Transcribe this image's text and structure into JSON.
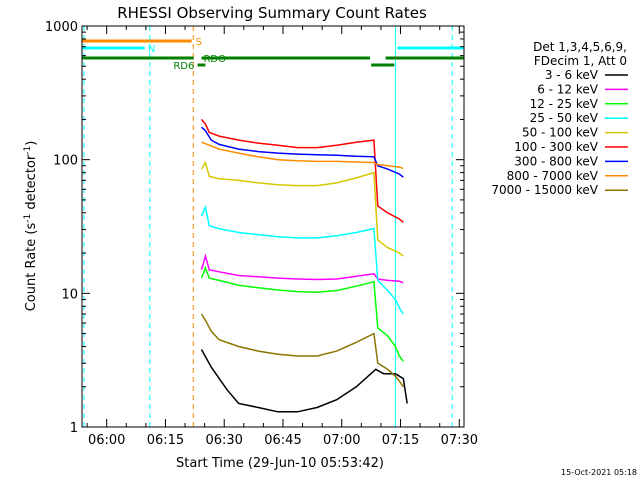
{
  "chart_data": {
    "type": "line",
    "title": "RHESSI Observing Summary Count Rates",
    "xlabel": "Start Time (29-Jun-10 05:53:42)",
    "ylabel_main": "Count Rate (s",
    "ylabel_sup1": "-1",
    "ylabel_mid": " detector",
    "ylabel_sup2": "-1",
    "ylabel_end": ")",
    "x_unit": "minutes since 05:53:42",
    "xlim": [
      0,
      97.5
    ],
    "ylim": [
      1,
      1000
    ],
    "yscale": "log",
    "xticks": [
      {
        "pos": 6.3,
        "label": "06:00"
      },
      {
        "pos": 21.3,
        "label": "06:15"
      },
      {
        "pos": 36.3,
        "label": "06:30"
      },
      {
        "pos": 51.3,
        "label": "06:45"
      },
      {
        "pos": 66.3,
        "label": "07:00"
      },
      {
        "pos": 81.3,
        "label": "07:15"
      },
      {
        "pos": 96.3,
        "label": "07:30"
      }
    ],
    "yticks": [
      {
        "value": 1,
        "label": "1"
      },
      {
        "value": 10,
        "label": "10"
      },
      {
        "value": 100,
        "label": "100"
      },
      {
        "value": 1000,
        "label": "1000"
      }
    ],
    "legend": {
      "placement": "right",
      "header": [
        "Det 1,3,4,5,6,9,",
        "FDecim 1, Att 0"
      ]
    },
    "series": [
      {
        "name": "3 - 6 keV",
        "color": "#000000",
        "x": [
          30.5,
          33,
          37,
          40,
          45,
          50,
          55,
          60,
          65,
          70,
          75,
          77,
          80,
          81,
          82,
          83
        ],
        "y": [
          3.8,
          2.8,
          1.9,
          1.5,
          1.4,
          1.3,
          1.3,
          1.4,
          1.6,
          2.0,
          2.7,
          2.5,
          2.5,
          2.4,
          2.3,
          1.5
        ]
      },
      {
        "name": "6 - 12 keV",
        "color": "#ff00ff",
        "x": [
          30.5,
          31.5,
          32.5,
          35,
          40,
          45,
          50,
          55,
          60,
          65,
          70,
          74.5,
          75.5,
          78,
          81,
          82
        ],
        "y": [
          15,
          19,
          15,
          14.5,
          13.6,
          13.3,
          13.0,
          12.8,
          12.7,
          12.8,
          13.4,
          14.0,
          12.8,
          12.5,
          12.3,
          12.0
        ]
      },
      {
        "name": "12 - 25 keV",
        "color": "#00ff00",
        "x": [
          30.5,
          31.5,
          32.5,
          35,
          40,
          45,
          50,
          55,
          60,
          65,
          70,
          74.5,
          75.5,
          78,
          80,
          81,
          82
        ],
        "y": [
          13,
          15.5,
          13,
          12.5,
          11.5,
          11.0,
          10.6,
          10.3,
          10.2,
          10.5,
          11.3,
          12.2,
          5.5,
          4.8,
          4.0,
          3.4,
          3.1
        ]
      },
      {
        "name": "25 - 50 keV",
        "color": "#00ffff",
        "x": [
          30.5,
          31.5,
          32.5,
          35,
          40,
          45,
          50,
          55,
          60,
          65,
          70,
          74.5,
          75.5,
          78,
          80,
          81,
          82
        ],
        "y": [
          38,
          44,
          32,
          30.5,
          28.5,
          27.5,
          26.5,
          26.0,
          26.0,
          27.0,
          28.5,
          30.5,
          12.5,
          10.5,
          9.0,
          7.8,
          7.0
        ]
      },
      {
        "name": "50 - 100 keV",
        "color": "#d4c800",
        "x": [
          30.5,
          31.5,
          32.5,
          35,
          40,
          45,
          50,
          55,
          60,
          65,
          70,
          74.5,
          75.5,
          78,
          81,
          82
        ],
        "y": [
          85,
          95,
          75,
          72,
          70,
          67,
          65,
          64,
          64,
          67,
          73,
          80,
          25,
          22,
          20,
          19
        ]
      },
      {
        "name": "100 - 300 keV",
        "color": "#ff0000",
        "x": [
          30.5,
          31.5,
          32.5,
          35,
          40,
          45,
          50,
          55,
          60,
          65,
          70,
          74.5,
          75.5,
          78,
          81,
          82
        ],
        "y": [
          200,
          185,
          160,
          150,
          140,
          133,
          128,
          123,
          123,
          128,
          135,
          140,
          45,
          40,
          36,
          34
        ]
      },
      {
        "name": "300 - 800 keV",
        "color": "#0000ff",
        "x": [
          30.5,
          31.5,
          33,
          35,
          40,
          45,
          50,
          55,
          60,
          65,
          70,
          74.5,
          75.5,
          78,
          81,
          82
        ],
        "y": [
          175,
          165,
          140,
          130,
          120,
          115,
          112,
          110,
          109,
          108,
          106,
          105,
          90,
          85,
          78,
          74
        ]
      },
      {
        "name": "800 - 7000 keV",
        "color": "#ff8c00",
        "x": [
          30.5,
          32,
          35,
          40,
          45,
          50,
          55,
          60,
          65,
          70,
          74.5,
          75.5,
          78,
          81,
          82
        ],
        "y": [
          135,
          130,
          120,
          112,
          105,
          100,
          98,
          97,
          97,
          96,
          95,
          92,
          90,
          88,
          86
        ]
      },
      {
        "name": "7000 - 15000 keV",
        "color": "#8b7500",
        "x": [
          30.5,
          31.5,
          33,
          35,
          40,
          45,
          50,
          55,
          60,
          65,
          70,
          74.5,
          75.5,
          78,
          80,
          81,
          82
        ],
        "y": [
          7.0,
          6.3,
          5.2,
          4.5,
          4.0,
          3.7,
          3.5,
          3.4,
          3.4,
          3.7,
          4.3,
          5.0,
          3.0,
          2.7,
          2.4,
          2.2,
          2.0
        ]
      }
    ],
    "flag_bars": [
      {
        "label": "S",
        "color": "#ff8c00",
        "segments": [
          [
            0,
            28
          ]
        ],
        "label_at": 28.5
      },
      {
        "label": "N",
        "color": "#00ffff",
        "segments": [
          [
            0,
            16
          ],
          [
            80.5,
            97.5
          ]
        ],
        "label_at": 16.3
      },
      {
        "label": "RDO",
        "color": "#007f00",
        "segments": [
          [
            0,
            28.5
          ],
          [
            30.5,
            73.5
          ],
          [
            77.5,
            97.5
          ]
        ],
        "label_at": 30.5
      },
      {
        "label": "RD6",
        "color": "#007f00",
        "segments": [
          [
            29.5,
            31.5
          ],
          [
            73.8,
            79.7
          ]
        ],
        "label_at": 22.8
      }
    ],
    "vlines": [
      {
        "x": 0.5,
        "color": "#00ffff",
        "style": "dashed"
      },
      {
        "x": 17.3,
        "color": "#00ffff",
        "style": "dashed"
      },
      {
        "x": 28.4,
        "color": "#ff8c00",
        "style": "dashed"
      },
      {
        "x": 80.0,
        "color": "#00ffff",
        "style": "solid"
      },
      {
        "x": 94.5,
        "color": "#00ffff",
        "style": "dashed"
      }
    ]
  },
  "footer": {
    "timestamp": "15-Oct-2021 05:18"
  }
}
